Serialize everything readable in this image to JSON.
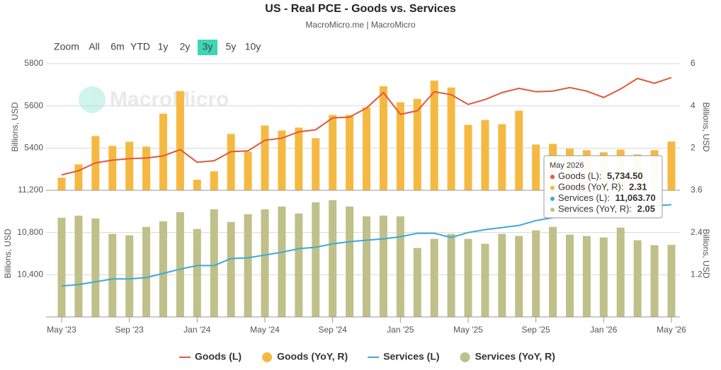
{
  "chart_data": {
    "type": "combo",
    "title": "US - Real PCE - Goods vs. Services",
    "subtitle": "MacroMicro.me | MacroMicro",
    "watermark": "MacroMicro",
    "range_buttons": {
      "label": "Zoom",
      "options": [
        "All",
        "6m",
        "YTD",
        "1y",
        "2y",
        "3y",
        "5y",
        "10y"
      ],
      "active": "3y"
    },
    "categories": [
      "May '23",
      null,
      null,
      null,
      "Sep '23",
      null,
      null,
      null,
      "Jan '24",
      null,
      null,
      null,
      "May '24",
      null,
      null,
      null,
      "Sep '24",
      null,
      null,
      null,
      "Jan '25",
      null,
      null,
      null,
      "May '25",
      null,
      null,
      null,
      "Sep '25",
      null,
      null,
      null,
      "Jan '26",
      null,
      null,
      null,
      "May '26"
    ],
    "grid": true,
    "panels": [
      {
        "ylabel": "Billions, USD",
        "y2label": "Billions, USD",
        "ylim": [
          5200,
          5800
        ],
        "yticks": [
          5400,
          5600,
          5800
        ],
        "y2lim": [
          0,
          6
        ],
        "y2ticks": [
          2,
          4,
          6
        ],
        "series": [
          {
            "name": "Goods (YoY, R)",
            "kind": "bar",
            "axis": "y2",
            "color": "#f5b942",
            "values": [
              0.6,
              1.23,
              2.57,
              2.1,
              2.3,
              2.07,
              3.63,
              4.7,
              0.5,
              0.9,
              2.67,
              1.83,
              3.07,
              2.83,
              2.97,
              2.47,
              3.57,
              3.57,
              3.93,
              4.93,
              4.17,
              4.33,
              5.2,
              4.87,
              3.1,
              3.33,
              3.13,
              3.77,
              2.17,
              2.2,
              1.97,
              1.9,
              1.8,
              1.93,
              1.7,
              1.9,
              2.31
            ]
          },
          {
            "name": "Goods (L)",
            "kind": "line",
            "color": "#e05a3a",
            "values": [
              5273,
              5293,
              5330,
              5343,
              5350,
              5353,
              5363,
              5393,
              5333,
              5340,
              5383,
              5387,
              5437,
              5447,
              5477,
              5487,
              5543,
              5547,
              5590,
              5663,
              5560,
              5577,
              5667,
              5653,
              5607,
              5630,
              5663,
              5683,
              5667,
              5670,
              5687,
              5670,
              5640,
              5680,
              5730,
              5707,
              5734.5
            ]
          }
        ]
      },
      {
        "ylabel": "Billions, USD",
        "y2label": "Billions, USD",
        "ylim": [
          10000,
          11200
        ],
        "yticks": [
          {
            "value": 10400,
            "label": "10,400"
          },
          {
            "value": 10800,
            "label": "10,800"
          },
          {
            "value": 11200,
            "label": "11,200"
          }
        ],
        "y2lim": [
          0,
          3.6
        ],
        "y2ticks": [
          1.2,
          2.4,
          3.6
        ],
        "series": [
          {
            "name": "Services (YoY, R)",
            "kind": "bar",
            "axis": "y2",
            "color": "#bfc08a",
            "values": [
              2.82,
              2.88,
              2.8,
              2.36,
              2.32,
              2.56,
              2.72,
              2.98,
              2.5,
              3.06,
              2.7,
              2.92,
              3.06,
              3.14,
              2.94,
              3.26,
              3.32,
              3.14,
              2.86,
              2.88,
              2.86,
              1.96,
              2.22,
              2.36,
              2.22,
              2.08,
              2.36,
              2.3,
              2.46,
              2.56,
              2.34,
              2.3,
              2.26,
              2.54,
              2.18,
              2.04,
              2.05
            ]
          },
          {
            "name": "Services (L)",
            "kind": "line",
            "color": "#3ea9d4",
            "values": [
              10293,
              10307,
              10333,
              10360,
              10360,
              10373,
              10413,
              10453,
              10487,
              10487,
              10553,
              10560,
              10587,
              10613,
              10647,
              10660,
              10693,
              10713,
              10727,
              10740,
              10760,
              10793,
              10793,
              10753,
              10800,
              10827,
              10847,
              10867,
              10913,
              10940,
              10973,
              10993,
              11013,
              11027,
              11040,
              11053,
              11063.7
            ]
          }
        ]
      }
    ],
    "legend_order": [
      [
        0,
        1
      ],
      [
        0,
        0
      ],
      [
        1,
        1
      ],
      [
        1,
        0
      ]
    ],
    "tooltip": {
      "title": "May 2026",
      "items": [
        {
          "label": "Goods (L): ",
          "value": "5,734.50",
          "color": "#e05a3a"
        },
        {
          "label": "Goods (YoY, R): ",
          "value": "2.31",
          "color": "#f5b942"
        },
        {
          "label": "Services (L): ",
          "value": "11,063.70",
          "color": "#3ea9d4"
        },
        {
          "label": "Services (YoY, R): ",
          "value": "2.05",
          "color": "#bfc08a"
        }
      ]
    }
  }
}
